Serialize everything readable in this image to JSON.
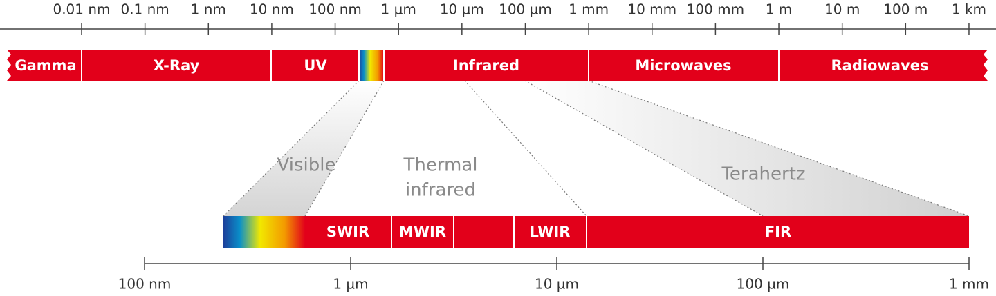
{
  "top_scale": {
    "labels": [
      "0.01 nm",
      "0.1 nm",
      "1 nm",
      "10 nm",
      "100 nm",
      "1 µm",
      "10 µm",
      "100 µm",
      "1 mm",
      "10 mm",
      "100 mm",
      "1 m",
      "10 m",
      "100 m",
      "1 km"
    ]
  },
  "bands": [
    "Gamma",
    "X-Ray",
    "UV",
    "Infrared",
    "Microwaves",
    "Radiowaves"
  ],
  "regions": {
    "visible": "Visible",
    "thermal": [
      "Thermal",
      "infrared"
    ],
    "terahertz": "Terahertz"
  },
  "sub_bands": [
    "SWIR",
    "MWIR",
    "LWIR",
    "FIR"
  ],
  "bottom_scale": {
    "labels": [
      "100 nm",
      "1 µm",
      "10 µm",
      "100 µm",
      "1 mm"
    ]
  }
}
